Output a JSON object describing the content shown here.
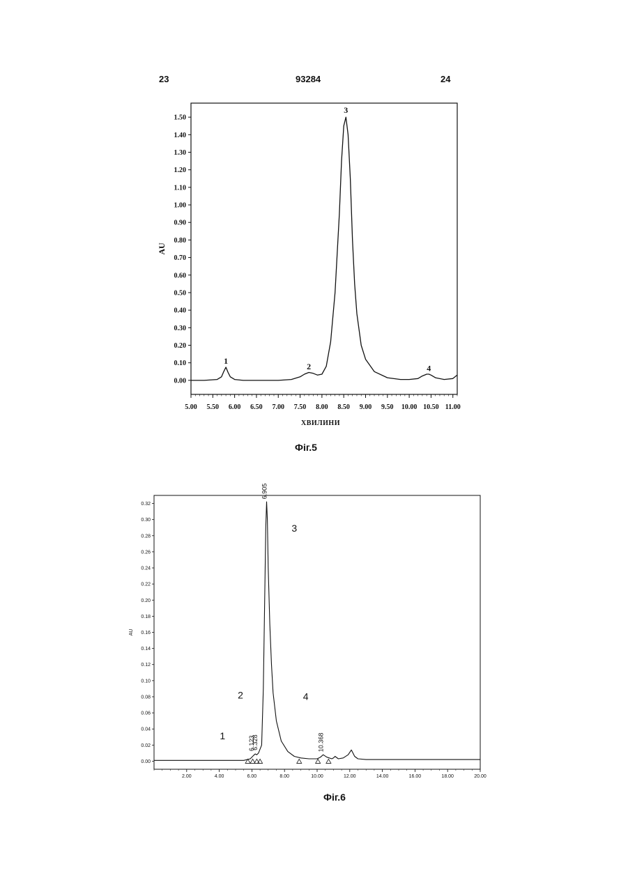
{
  "header": {
    "left_page": "23",
    "doc_number": "93284",
    "right_page": "24"
  },
  "chart_data": [
    {
      "type": "line",
      "caption": "Фіг.5",
      "xlabel": "ХВИЛИНИ",
      "ylabel": "AU",
      "xlim": [
        5.0,
        11.1
      ],
      "ylim": [
        -0.08,
        1.58
      ],
      "xticks": [
        "5.00",
        "5.50",
        "6.00",
        "6.50",
        "7.00",
        "7.50",
        "8.00",
        "8.50",
        "9.00",
        "9.50",
        "10.00",
        "10.50",
        "11.00"
      ],
      "yticks": [
        "0.00",
        "0.10",
        "0.20",
        "0.30",
        "0.40",
        "0.50",
        "0.60",
        "0.70",
        "0.80",
        "0.90",
        "1.00",
        "1.10",
        "1.20",
        "1.30",
        "1.40",
        "1.50"
      ],
      "peaks": [
        {
          "label": "1",
          "x": 5.8,
          "y": 0.07
        },
        {
          "label": "2",
          "x": 7.7,
          "y": 0.04
        },
        {
          "label": "3",
          "x": 8.55,
          "y": 1.5
        },
        {
          "label": "4",
          "x": 10.45,
          "y": 0.03
        }
      ],
      "series": [
        {
          "x": [
            5.0,
            5.3,
            5.6,
            5.7,
            5.75,
            5.8,
            5.85,
            5.9,
            6.0,
            6.2,
            6.5,
            7.0,
            7.3,
            7.5,
            7.6,
            7.7,
            7.8,
            7.9,
            8.0,
            8.1,
            8.2,
            8.3,
            8.4,
            8.45,
            8.5,
            8.55,
            8.6,
            8.65,
            8.7,
            8.75,
            8.8,
            8.9,
            9.0,
            9.2,
            9.5,
            9.8,
            10.0,
            10.2,
            10.3,
            10.4,
            10.45,
            10.5,
            10.6,
            10.8,
            11.0,
            11.1
          ],
          "y": [
            0.0,
            0.0,
            0.005,
            0.02,
            0.05,
            0.075,
            0.045,
            0.02,
            0.005,
            0.0,
            0.0,
            0.0,
            0.005,
            0.02,
            0.035,
            0.045,
            0.04,
            0.03,
            0.035,
            0.08,
            0.22,
            0.5,
            0.95,
            1.25,
            1.45,
            1.5,
            1.4,
            1.15,
            0.8,
            0.55,
            0.38,
            0.2,
            0.12,
            0.05,
            0.015,
            0.005,
            0.005,
            0.01,
            0.025,
            0.035,
            0.035,
            0.03,
            0.015,
            0.005,
            0.01,
            0.03
          ]
        }
      ]
    },
    {
      "type": "line",
      "caption": "Фіг.6",
      "xlabel": "",
      "ylabel": "AU",
      "xlim": [
        0.0,
        20.0
      ],
      "ylim": [
        -0.01,
        0.33
      ],
      "xticks": [
        "2.00",
        "4.00",
        "6.00",
        "8.00",
        "10.00",
        "12.00",
        "14.00",
        "16.00",
        "18.00",
        "20.00"
      ],
      "yticks": [
        "0.00",
        "0.02",
        "0.04",
        "0.06",
        "0.08",
        "0.10",
        "0.12",
        "0.14",
        "0.16",
        "0.18",
        "0.20",
        "0.22",
        "0.24",
        "0.26",
        "0.28",
        "0.30",
        "0.32"
      ],
      "peak_labels": [
        {
          "label": "1",
          "x": 4.2,
          "y": 0.027
        },
        {
          "label": "2",
          "x": 5.3,
          "y": 0.078
        },
        {
          "label": "3",
          "x": 8.6,
          "y": 0.285
        },
        {
          "label": "4",
          "x": 9.3,
          "y": 0.076
        }
      ],
      "retention_times": [
        {
          "label": "6.123",
          "x": 6.12,
          "y": 0.009
        },
        {
          "label": "6.328",
          "x": 6.33,
          "y": 0.01
        },
        {
          "label": "6.905",
          "x": 6.9,
          "y": 0.322
        },
        {
          "label": "10.368",
          "x": 10.37,
          "y": 0.008
        }
      ],
      "markers": [
        5.75,
        6.05,
        6.3,
        6.5,
        8.9,
        10.05,
        10.7
      ],
      "series": [
        {
          "x": [
            0.0,
            2.0,
            4.0,
            5.5,
            5.9,
            6.1,
            6.2,
            6.3,
            6.4,
            6.6,
            6.7,
            6.8,
            6.85,
            6.9,
            6.95,
            7.0,
            7.1,
            7.2,
            7.3,
            7.5,
            7.8,
            8.2,
            8.6,
            9.0,
            9.5,
            10.0,
            10.2,
            10.37,
            10.6,
            10.9,
            11.0,
            11.1,
            11.3,
            11.6,
            11.9,
            12.1,
            12.3,
            12.5,
            13.0,
            14.0,
            16.0,
            18.0,
            20.0
          ],
          "y": [
            0.001,
            0.001,
            0.001,
            0.001,
            0.003,
            0.007,
            0.009,
            0.008,
            0.01,
            0.02,
            0.09,
            0.22,
            0.29,
            0.322,
            0.3,
            0.24,
            0.17,
            0.12,
            0.085,
            0.05,
            0.025,
            0.012,
            0.006,
            0.004,
            0.003,
            0.003,
            0.005,
            0.008,
            0.005,
            0.003,
            0.004,
            0.006,
            0.003,
            0.004,
            0.008,
            0.014,
            0.006,
            0.003,
            0.002,
            0.002,
            0.002,
            0.002,
            0.002
          ]
        }
      ]
    }
  ]
}
